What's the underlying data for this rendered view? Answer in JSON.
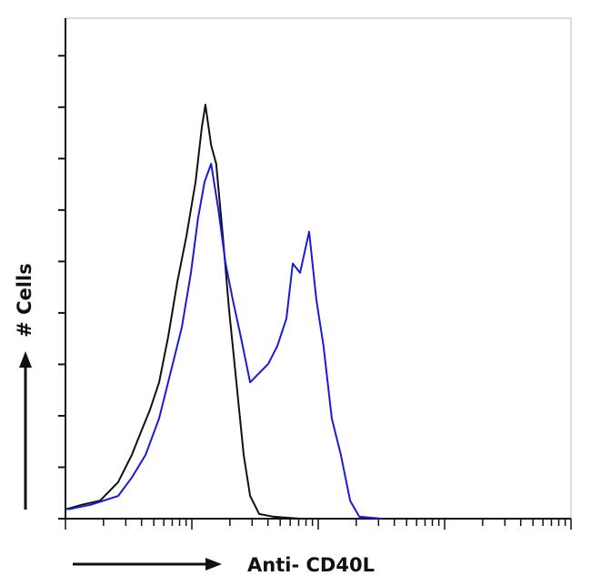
{
  "chart_data": {
    "type": "line",
    "x_label": "Anti- CD40L",
    "y_label": "# Cells",
    "xscale": "log",
    "xlim": [
      1,
      10000
    ],
    "xticks": [
      1,
      2,
      3,
      4,
      5,
      6,
      7,
      8,
      9,
      10,
      20,
      30,
      40,
      50,
      60,
      70,
      80,
      90,
      100,
      200,
      300,
      400,
      500,
      600,
      700,
      800,
      900,
      1000,
      2000,
      3000,
      4000,
      5000,
      6000,
      7000,
      8000,
      9000,
      10000
    ],
    "ylim": [
      0,
      9.73
    ],
    "yticks": [
      0,
      1,
      2,
      3,
      4,
      5,
      6,
      7,
      8,
      9
    ],
    "series": [
      {
        "color": "#111111",
        "x": [
          1,
          1.35,
          1.88,
          2.61,
          3.35,
          3.95,
          4.67,
          5.51,
          6.5,
          7.67,
          9.06,
          10.7,
          12.0,
          12.8,
          14.2,
          15.6,
          17.6,
          19.7,
          22.5,
          25.7,
          28.9,
          34.1,
          43.7,
          71.8
        ],
        "values": [
          0.18,
          0.27,
          0.35,
          0.71,
          1.24,
          1.68,
          2.12,
          2.65,
          3.54,
          4.6,
          5.49,
          6.55,
          7.61,
          8.05,
          7.26,
          6.9,
          5.49,
          4.07,
          2.65,
          1.24,
          0.44,
          0.09,
          0.04,
          0
        ]
      },
      {
        "color": "#1a1adb",
        "x": [
          1.05,
          1.59,
          2.61,
          3.35,
          4.3,
          5.51,
          7.06,
          8.33,
          9.84,
          11.2,
          12.6,
          14.2,
          16.2,
          18.5,
          21.1,
          24.4,
          28.9,
          34.1,
          40.2,
          47.5,
          56,
          62.9,
          71.8,
          84.7,
          96.8,
          110,
          128,
          151,
          179,
          211,
          319
        ],
        "values": [
          0.18,
          0.27,
          0.44,
          0.8,
          1.24,
          1.95,
          3.01,
          3.72,
          4.78,
          5.84,
          6.55,
          6.9,
          6.02,
          4.96,
          4.25,
          3.54,
          2.65,
          2.83,
          3.01,
          3.36,
          3.89,
          4.96,
          4.78,
          5.58,
          4.25,
          3.36,
          1.95,
          1.24,
          0.35,
          0.04,
          0
        ]
      }
    ]
  }
}
